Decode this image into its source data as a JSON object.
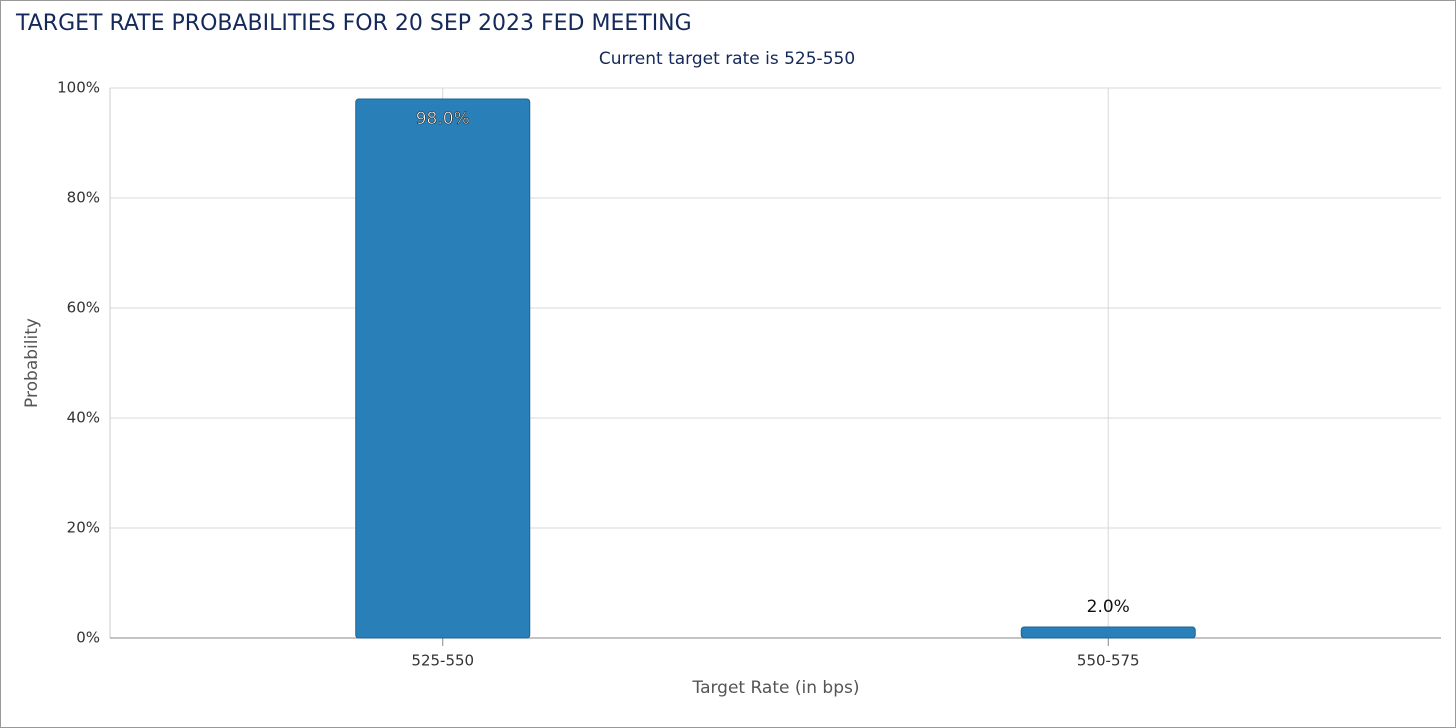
{
  "chart_data": {
    "type": "bar",
    "title": "TARGET RATE PROBABILITIES FOR 20 SEP 2023 FED MEETING",
    "subtitle": "Current target rate is 525-550",
    "x_label": "Target Rate (in bps)",
    "y_label": "Probability",
    "categories": [
      "525-550",
      "550-575"
    ],
    "values": [
      98.0,
      2.0
    ],
    "value_labels": [
      "98.0%",
      "2.0%"
    ],
    "color": "#2980b9",
    "ylim": [
      0,
      100
    ],
    "yticks": [
      {
        "value": 0,
        "label": "0%"
      },
      {
        "value": 20,
        "label": "20%"
      },
      {
        "value": 40,
        "label": "40%"
      },
      {
        "value": 60,
        "label": "60%"
      },
      {
        "value": 80,
        "label": "80%"
      },
      {
        "value": 100,
        "label": "100%"
      }
    ],
    "grid": true
  }
}
